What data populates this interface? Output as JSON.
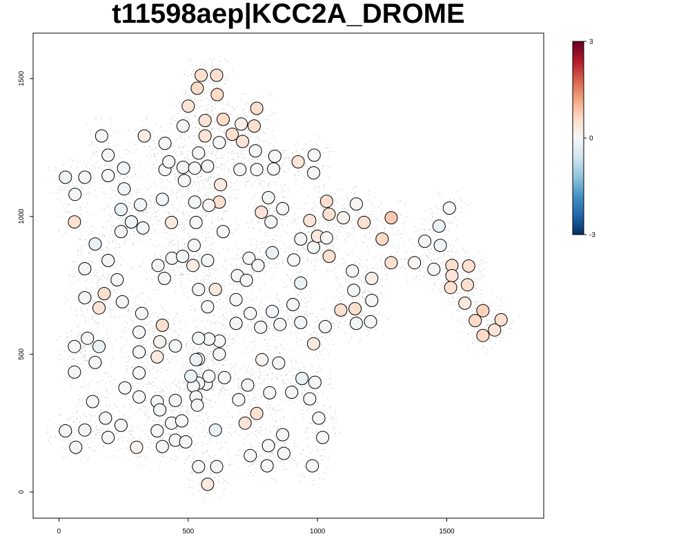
{
  "chart_data": {
    "type": "scatter",
    "title": "t11598aep|KCC2A_DROME",
    "xlabel": "",
    "ylabel": "",
    "xlim": [
      -100,
      1875
    ],
    "ylim": [
      -95,
      1665
    ],
    "x_ticks": [
      0,
      500,
      1000,
      1500
    ],
    "y_ticks": [
      0,
      500,
      1000,
      1500
    ],
    "grid": false,
    "legend": "none",
    "colorbar": {
      "min": -3,
      "max": 3,
      "ticks": [
        "3",
        "0",
        "-3"
      ],
      "placement": "top-right",
      "colors": [
        "#67001f",
        "#b2182b",
        "#d6604d",
        "#f4a582",
        "#fddbc7",
        "#f7f7f7",
        "#d1e5f0",
        "#92c5de",
        "#4393c3",
        "#2166ac",
        "#053061"
      ]
    },
    "background_cloud_color": "#c8c8c8",
    "spots": [
      [
        25,
        1142,
        -0.1
      ],
      [
        62,
        1080,
        -0.05
      ],
      [
        100,
        1142,
        -0.05
      ],
      [
        165,
        1292,
        -0.05
      ],
      [
        190,
        1222,
        -0.05
      ],
      [
        190,
        1148,
        -0.05
      ],
      [
        250,
        1175,
        -0.1
      ],
      [
        252,
        1100,
        -0.1
      ],
      [
        60,
        980,
        0.5
      ],
      [
        240,
        1025,
        -0.2
      ],
      [
        280,
        980,
        -0.1
      ],
      [
        240,
        945,
        -0.1
      ],
      [
        315,
        1042,
        -0.1
      ],
      [
        325,
        958,
        -0.1
      ],
      [
        330,
        1292,
        0.2
      ],
      [
        410,
        1265,
        -0.05
      ],
      [
        400,
        1062,
        -0.1
      ],
      [
        410,
        1170,
        -0.05
      ],
      [
        425,
        1198,
        -0.05
      ],
      [
        480,
        1178,
        -0.05
      ],
      [
        485,
        1130,
        -0.05
      ],
      [
        480,
        1328,
        -0.05
      ],
      [
        500,
        1400,
        0.4
      ],
      [
        550,
        1512,
        0.5
      ],
      [
        535,
        1465,
        0.6
      ],
      [
        610,
        1512,
        0.5
      ],
      [
        612,
        1442,
        0.6
      ],
      [
        565,
        1348,
        0.4
      ],
      [
        565,
        1292,
        0.4
      ],
      [
        540,
        1230,
        -0.05
      ],
      [
        525,
        1175,
        -0.05
      ],
      [
        575,
        1182,
        -0.05
      ],
      [
        620,
        1268,
        -0.05
      ],
      [
        635,
        1352,
        0.6
      ],
      [
        670,
        1298,
        0.5
      ],
      [
        705,
        1335,
        0.2
      ],
      [
        710,
        1272,
        0.4
      ],
      [
        755,
        1328,
        0.5
      ],
      [
        765,
        1392,
        0.5
      ],
      [
        760,
        1238,
        -0.05
      ],
      [
        835,
        1218,
        -0.05
      ],
      [
        765,
        1170,
        -0.05
      ],
      [
        700,
        1170,
        -0.05
      ],
      [
        625,
        1115,
        0.3
      ],
      [
        620,
        1052,
        0.5
      ],
      [
        580,
        1040,
        0.05
      ],
      [
        525,
        1052,
        -0.05
      ],
      [
        635,
        945,
        -0.05
      ],
      [
        530,
        978,
        -0.05
      ],
      [
        435,
        978,
        0.3
      ],
      [
        408,
        775,
        -0.05
      ],
      [
        383,
        822,
        -0.05
      ],
      [
        437,
        848,
        -0.05
      ],
      [
        478,
        855,
        -0.05
      ],
      [
        518,
        822,
        0.2
      ],
      [
        523,
        895,
        -0.05
      ],
      [
        575,
        840,
        -0.05
      ],
      [
        540,
        735,
        -0.05
      ],
      [
        605,
        735,
        0.3
      ],
      [
        575,
        672,
        -0.05
      ],
      [
        685,
        698,
        -0.05
      ],
      [
        690,
        785,
        -0.05
      ],
      [
        725,
        768,
        -0.1
      ],
      [
        735,
        848,
        -0.05
      ],
      [
        770,
        822,
        -0.05
      ],
      [
        783,
        1015,
        0.4
      ],
      [
        810,
        1068,
        -0.05
      ],
      [
        830,
        1172,
        -0.05
      ],
      [
        820,
        980,
        -0.05
      ],
      [
        865,
        1028,
        -0.05
      ],
      [
        825,
        868,
        -0.2
      ],
      [
        908,
        842,
        -0.05
      ],
      [
        925,
        1198,
        0.4
      ],
      [
        987,
        1222,
        -0.05
      ],
      [
        985,
        1158,
        -0.05
      ],
      [
        985,
        888,
        -0.05
      ],
      [
        935,
        918,
        -0.05
      ],
      [
        970,
        985,
        0.4
      ],
      [
        1000,
        928,
        0.3
      ],
      [
        1035,
        922,
        0.05
      ],
      [
        1045,
        855,
        0.5
      ],
      [
        1045,
        1008,
        0.5
      ],
      [
        1035,
        1055,
        0.5
      ],
      [
        1100,
        995,
        0.1
      ],
      [
        1150,
        1045,
        0.05
      ],
      [
        1180,
        978,
        0.5
      ],
      [
        1250,
        918,
        0.6
      ],
      [
        1285,
        995,
        0.8
      ],
      [
        1285,
        832,
        0.5
      ],
      [
        1375,
        832,
        0.05
      ],
      [
        1415,
        910,
        -0.05
      ],
      [
        1470,
        965,
        -0.2
      ],
      [
        1510,
        1030,
        0.05
      ],
      [
        1475,
        895,
        -0.1
      ],
      [
        1450,
        808,
        -0.05
      ],
      [
        1520,
        822,
        0.5
      ],
      [
        1520,
        785,
        0.4
      ],
      [
        1515,
        742,
        0.5
      ],
      [
        1585,
        820,
        0.5
      ],
      [
        1580,
        752,
        0.5
      ],
      [
        1570,
        685,
        0.3
      ],
      [
        1610,
        622,
        0.6
      ],
      [
        1640,
        658,
        0.7
      ],
      [
        1640,
        568,
        0.6
      ],
      [
        1685,
        588,
        0.4
      ],
      [
        1710,
        625,
        0.5
      ],
      [
        1135,
        802,
        -0.05
      ],
      [
        1140,
        732,
        -0.05
      ],
      [
        1210,
        775,
        0.2
      ],
      [
        1210,
        695,
        -0.05
      ],
      [
        1090,
        660,
        0.5
      ],
      [
        1145,
        665,
        0.5
      ],
      [
        1150,
        612,
        -0.05
      ],
      [
        1205,
        618,
        -0.05
      ],
      [
        1030,
        600,
        -0.05
      ],
      [
        935,
        758,
        -0.2
      ],
      [
        935,
        615,
        -0.1
      ],
      [
        905,
        680,
        -0.05
      ],
      [
        985,
        538,
        0.3
      ],
      [
        855,
        608,
        -0.05
      ],
      [
        825,
        655,
        -0.1
      ],
      [
        780,
        598,
        -0.05
      ],
      [
        740,
        648,
        -0.05
      ],
      [
        685,
        612,
        -0.05
      ],
      [
        785,
        480,
        0.1
      ],
      [
        850,
        468,
        -0.05
      ],
      [
        815,
        360,
        -0.05
      ],
      [
        900,
        362,
        -0.05
      ],
      [
        940,
        412,
        -0.2
      ],
      [
        970,
        338,
        -0.05
      ],
      [
        990,
        398,
        -0.05
      ],
      [
        1005,
        268,
        -0.05
      ],
      [
        1020,
        198,
        -0.05
      ],
      [
        980,
        95,
        -0.05
      ],
      [
        870,
        140,
        -0.05
      ],
      [
        865,
        208,
        -0.05
      ],
      [
        810,
        168,
        -0.05
      ],
      [
        805,
        95,
        -0.05
      ],
      [
        740,
        132,
        -0.05
      ],
      [
        720,
        250,
        0.4
      ],
      [
        765,
        285,
        0.5
      ],
      [
        730,
        388,
        -0.05
      ],
      [
        695,
        335,
        -0.05
      ],
      [
        640,
        415,
        -0.05
      ],
      [
        620,
        500,
        -0.05
      ],
      [
        620,
        548,
        -0.05
      ],
      [
        580,
        555,
        -0.05
      ],
      [
        540,
        558,
        -0.05
      ],
      [
        540,
        482,
        -0.05
      ],
      [
        530,
        480,
        -0.2
      ],
      [
        570,
        392,
        -0.05
      ],
      [
        580,
        420,
        -0.05
      ],
      [
        540,
        395,
        -0.05
      ],
      [
        520,
        385,
        -0.05
      ],
      [
        510,
        420,
        -0.2
      ],
      [
        530,
        345,
        -0.05
      ],
      [
        535,
        315,
        -0.05
      ],
      [
        450,
        530,
        -0.05
      ],
      [
        390,
        545,
        0.1
      ],
      [
        380,
        490,
        0.3
      ],
      [
        400,
        605,
        0.5
      ],
      [
        310,
        580,
        -0.05
      ],
      [
        310,
        508,
        -0.05
      ],
      [
        320,
        648,
        -0.05
      ],
      [
        310,
        432,
        -0.05
      ],
      [
        310,
        345,
        -0.05
      ],
      [
        255,
        378,
        -0.05
      ],
      [
        240,
        242,
        -0.05
      ],
      [
        180,
        268,
        -0.05
      ],
      [
        190,
        198,
        -0.05
      ],
      [
        130,
        328,
        -0.05
      ],
      [
        100,
        225,
        -0.05
      ],
      [
        25,
        222,
        -0.05
      ],
      [
        65,
        162,
        -0.05
      ],
      [
        300,
        162,
        0.1
      ],
      [
        380,
        328,
        -0.05
      ],
      [
        390,
        298,
        -0.05
      ],
      [
        380,
        222,
        -0.05
      ],
      [
        435,
        250,
        -0.05
      ],
      [
        400,
        165,
        -0.05
      ],
      [
        450,
        188,
        -0.05
      ],
      [
        490,
        182,
        -0.05
      ],
      [
        475,
        258,
        -0.05
      ],
      [
        450,
        332,
        -0.05
      ],
      [
        605,
        225,
        -0.2
      ],
      [
        610,
        92,
        -0.05
      ],
      [
        540,
        92,
        -0.05
      ],
      [
        575,
        28,
        0.3
      ],
      [
        60,
        528,
        -0.05
      ],
      [
        60,
        435,
        -0.05
      ],
      [
        110,
        558,
        -0.05
      ],
      [
        155,
        528,
        -0.2
      ],
      [
        140,
        470,
        -0.05
      ],
      [
        100,
        705,
        -0.05
      ],
      [
        155,
        668,
        0.4
      ],
      [
        175,
        720,
        0.5
      ],
      [
        245,
        690,
        -0.05
      ],
      [
        225,
        770,
        -0.05
      ],
      [
        190,
        840,
        -0.05
      ],
      [
        140,
        900,
        -0.2
      ],
      [
        100,
        810,
        -0.05
      ],
      [
        280,
        980,
        -0.1
      ]
    ]
  }
}
